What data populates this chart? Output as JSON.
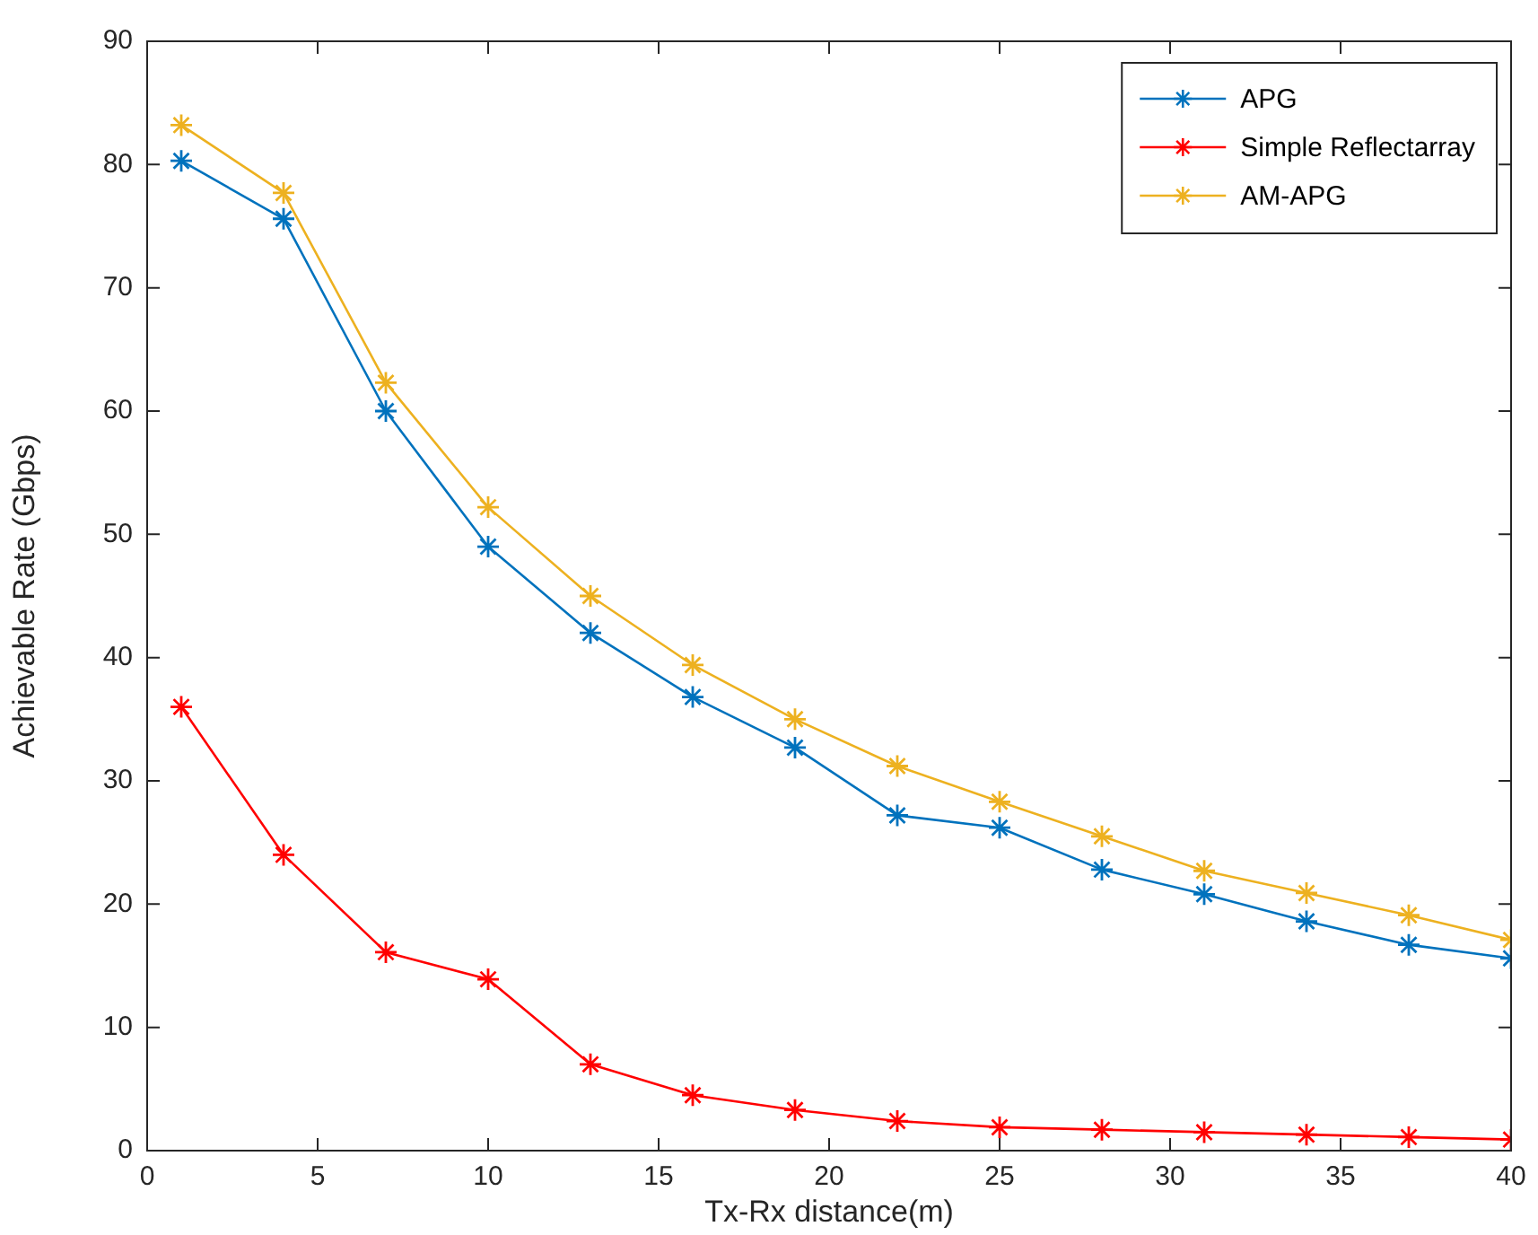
{
  "chart_data": {
    "type": "line",
    "xlabel": "Tx-Rx distance(m)",
    "ylabel": "Achievable Rate (Gbps)",
    "x": [
      1,
      4,
      7,
      10,
      13,
      16,
      19,
      22,
      25,
      28,
      31,
      34,
      37,
      40
    ],
    "series": [
      {
        "name": "APG",
        "color": "#0072bd",
        "values": [
          80.3,
          75.6,
          60,
          49,
          42,
          36.8,
          32.7,
          27.2,
          26.2,
          22.8,
          20.8,
          18.6,
          16.7,
          15.6
        ]
      },
      {
        "name": "Simple Reflectarray",
        "color": "#ff0000",
        "values": [
          36,
          24,
          16.1,
          13.9,
          7,
          4.5,
          3.3,
          2.4,
          1.9,
          1.7,
          1.5,
          1.3,
          1.1,
          0.9
        ]
      },
      {
        "name": "AM-APG",
        "color": "#edb120",
        "values": [
          83.2,
          77.7,
          62.3,
          52.2,
          45,
          39.4,
          35,
          31.2,
          28.3,
          25.5,
          22.7,
          20.9,
          19.1,
          17.1
        ]
      }
    ],
    "xlim": [
      0,
      40
    ],
    "xticks": [
      0,
      5,
      10,
      15,
      20,
      25,
      30,
      35,
      40
    ],
    "ylim": [
      0,
      90
    ],
    "yticks": [
      0,
      10,
      20,
      30,
      40,
      50,
      60,
      70,
      80,
      90
    ],
    "grid": false,
    "legend": "top right",
    "marker": "cross",
    "line_style": "solid"
  }
}
